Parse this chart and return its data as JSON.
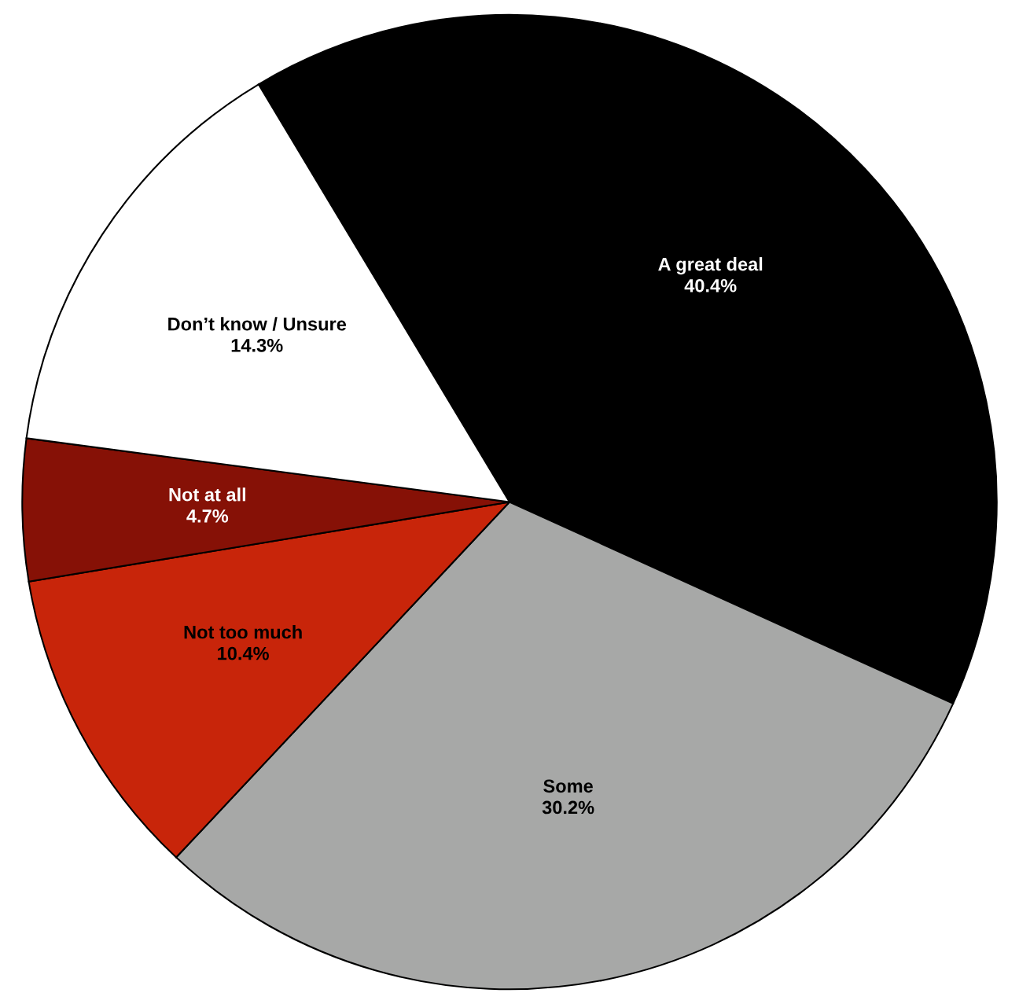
{
  "chart_data": {
    "type": "pie",
    "categories": [
      "A great deal",
      "Some",
      "Not too much",
      "Not at all",
      "Don’t know / Unsure"
    ],
    "values": [
      40.4,
      30.2,
      10.4,
      4.7,
      14.3
    ],
    "colors": [
      "#000000",
      "#a7a8a7",
      "#c8250a",
      "#861106",
      "#ffffff"
    ],
    "value_labels": [
      "40.4%",
      "30.2%",
      "10.4%",
      "4.7%",
      "14.3%"
    ]
  }
}
